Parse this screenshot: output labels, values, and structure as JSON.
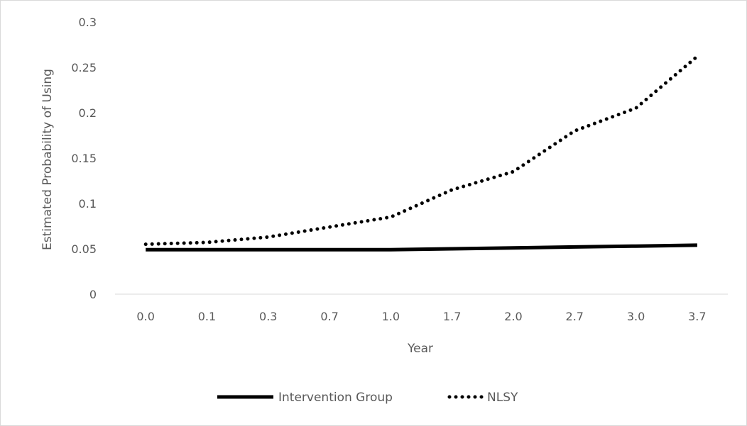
{
  "chart_data": {
    "type": "line",
    "title": "",
    "xlabel": "Year",
    "ylabel": "Estimated Probability of Using",
    "categories": [
      "0.0",
      "0.1",
      "0.3",
      "0.7",
      "1.0",
      "1.7",
      "2.0",
      "2.7",
      "3.0",
      "3.7"
    ],
    "ylim": [
      0,
      0.3
    ],
    "yticks": [
      "0",
      "0.05",
      "0.1",
      "0.15",
      "0.2",
      "0.25",
      "0.3"
    ],
    "grid": "horizontal",
    "legend_position": "bottom",
    "series": [
      {
        "name": "Intervention Group",
        "style": "solid",
        "color": "#000000",
        "values": [
          0.049,
          0.049,
          0.049,
          0.049,
          0.049,
          0.05,
          0.051,
          0.052,
          0.053,
          0.054
        ]
      },
      {
        "name": "NLSY",
        "style": "dotted",
        "color": "#000000",
        "values": [
          0.055,
          0.057,
          0.063,
          0.074,
          0.085,
          0.115,
          0.135,
          0.18,
          0.205,
          0.262
        ]
      }
    ]
  }
}
